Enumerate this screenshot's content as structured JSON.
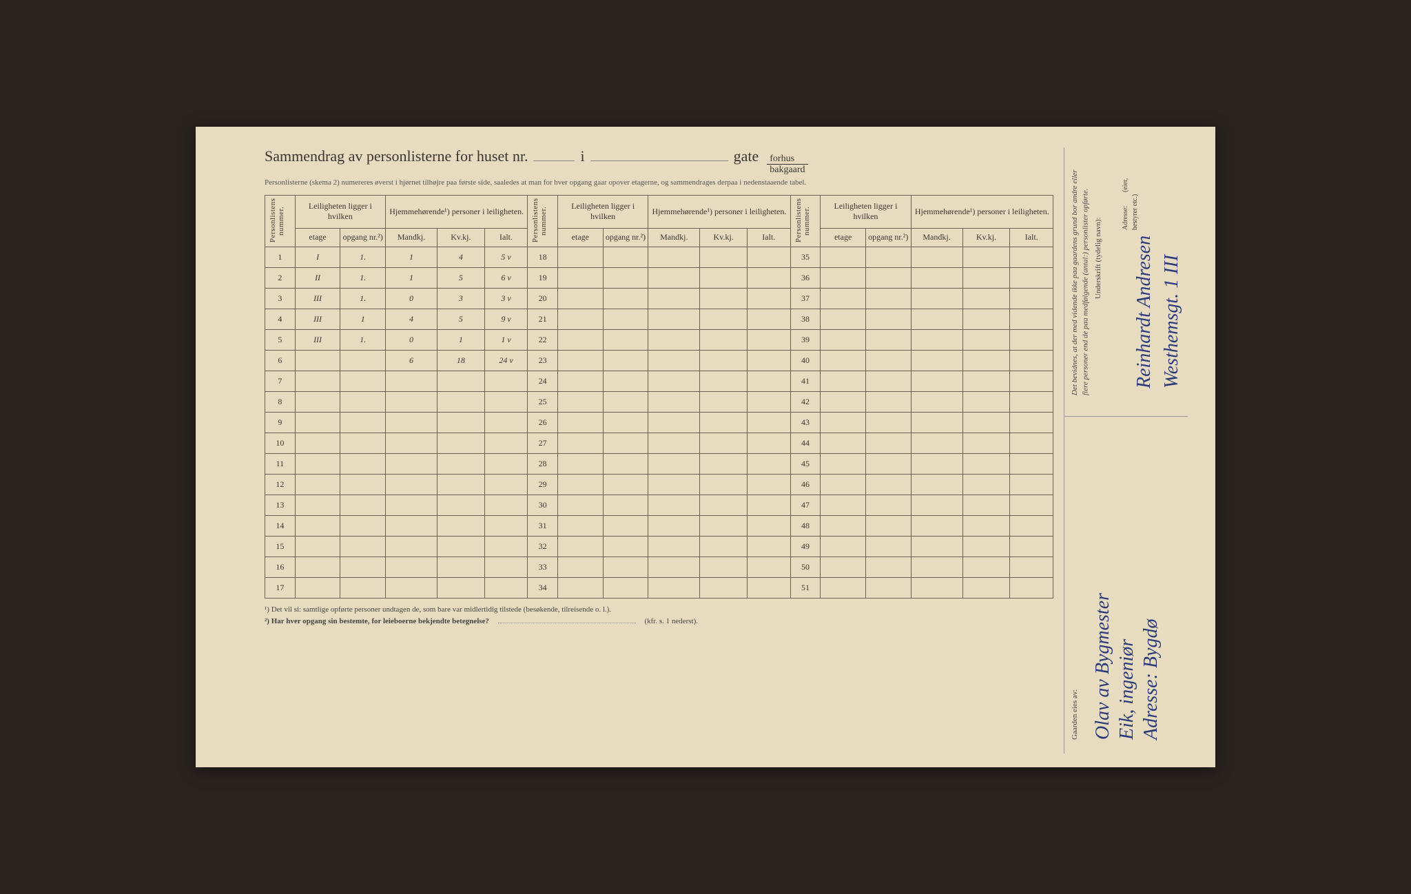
{
  "title": {
    "main": "Sammendrag av personlisterne for huset nr.",
    "i": "i",
    "gate": "gate",
    "forhus": "forhus",
    "bakgaard": "bakgaard"
  },
  "subtitle": "Personlisterne (skema 2) numereres øverst i hjørnet tilhøjre paa første side, saaledes at man for hver opgang gaar opover etagerne, og sammendrages derpaa i nedenstaaende tabel.",
  "headers": {
    "personlistens": "Personlistens nummer.",
    "leiligheten": "Leiligheten ligger i hvilken",
    "hjemmehorende": "Hjemmehørende¹) personer i leiligheten.",
    "etage": "etage",
    "opgang": "opgang nr.²)",
    "mandkj": "Mandkj.",
    "kvkj": "Kv.kj.",
    "ialt": "Ialt."
  },
  "rows_block1": [
    1,
    2,
    3,
    4,
    5,
    6,
    7,
    8,
    9,
    10,
    11,
    12,
    13,
    14,
    15,
    16,
    17
  ],
  "rows_block2": [
    18,
    19,
    20,
    21,
    22,
    23,
    24,
    25,
    26,
    27,
    28,
    29,
    30,
    31,
    32,
    33,
    34
  ],
  "rows_block3": [
    35,
    36,
    37,
    38,
    39,
    40,
    41,
    42,
    43,
    44,
    45,
    46,
    47,
    48,
    49,
    50,
    51
  ],
  "data": {
    "1": {
      "etage": "I",
      "opgang": "1.",
      "m": "1",
      "k": "4",
      "i": "5 v"
    },
    "2": {
      "etage": "II",
      "opgang": "1.",
      "m": "1",
      "k": "5",
      "i": "6 v"
    },
    "3": {
      "etage": "III",
      "opgang": "1.",
      "m": "0",
      "k": "3",
      "i": "3 v"
    },
    "4": {
      "etage": "III",
      "opgang": "1",
      "m": "4",
      "k": "5",
      "i": "9 v"
    },
    "5": {
      "etage": "III",
      "opgang": "1.",
      "m": "0",
      "k": "1",
      "i": "1 v"
    }
  },
  "sum": {
    "m": "6",
    "k": "18",
    "i": "24 v"
  },
  "footnotes": {
    "f1": "¹) Det vil si: samtlige opførte personer undtagen de, som bare var midlertidig tilstede (besøkende, tilreisende o. l.).",
    "f2": "²) Har hver opgang sin bestemte, for leieboerne bekjendte betegnelse?",
    "f2tail": "(kfr. s. 1 nederst)."
  },
  "right": {
    "attest": "Det bevidnes, at der med vidende ikke paa gaardens grund bor andre eller flere personer end de paa medfølgende (antal:) personlister opførte.",
    "underskrift": "Underskrift (tydelig navn):",
    "adresse": "Adresse:",
    "eier_bestyrer": "(eier, bestyrer etc.)",
    "gaarden": "Gaarden eies av:",
    "hw_name": "Reinhardt Andresen",
    "hw_addr": "Westhemsgt. 1 III",
    "hw_owner1": "Olav av Bygmester",
    "hw_owner2": "Eik, ingeniør",
    "hw_owner3": "Adresse: Bygdø"
  },
  "colors": {
    "paper": "#e8dcc0",
    "ink": "#3a3530",
    "handwriting": "#2a3a7a",
    "border": "#6a6050"
  }
}
